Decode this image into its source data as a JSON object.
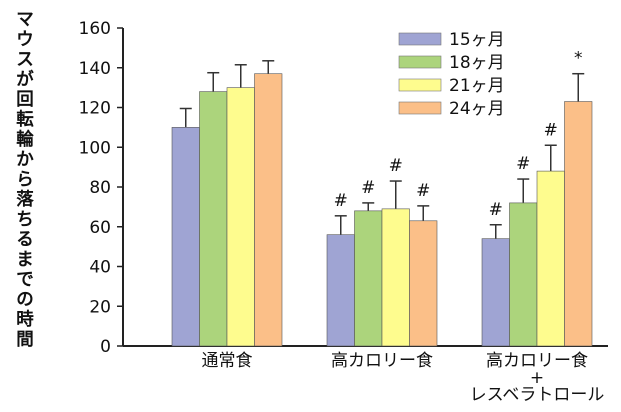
{
  "chart_data": {
    "type": "bar",
    "ylabel": "マウスが回転輪から落ちるまでの時間",
    "xlabel": "",
    "ylim": [
      0,
      160
    ],
    "yticks": [
      0,
      20,
      40,
      60,
      80,
      100,
      120,
      140,
      160
    ],
    "categories": [
      [
        "通常食"
      ],
      [
        "高カロリー食"
      ],
      [
        "高カロリー食",
        "+",
        "レスベラトロール"
      ]
    ],
    "series": [
      {
        "name": "15ヶ月",
        "color": "#9fa4d3",
        "values": [
          110,
          56,
          54
        ],
        "errors": [
          9.5,
          9.5,
          7
        ],
        "marks": [
          "",
          "#",
          "#"
        ]
      },
      {
        "name": "18ヶ月",
        "color": "#acd47c",
        "values": [
          128,
          68,
          72
        ],
        "errors": [
          9.5,
          4,
          12
        ],
        "marks": [
          "",
          "#",
          "#"
        ]
      },
      {
        "name": "21ヶ月",
        "color": "#fefc8e",
        "values": [
          130,
          69,
          88
        ],
        "errors": [
          11.5,
          14,
          13
        ],
        "marks": [
          "",
          "#",
          "#"
        ]
      },
      {
        "name": "24ヶ月",
        "color": "#fbbf88",
        "values": [
          137,
          63,
          123
        ],
        "errors": [
          6.5,
          7.5,
          14
        ],
        "marks": [
          "",
          "#",
          "*"
        ]
      }
    ],
    "legend_position": "top-right",
    "grid": false
  }
}
